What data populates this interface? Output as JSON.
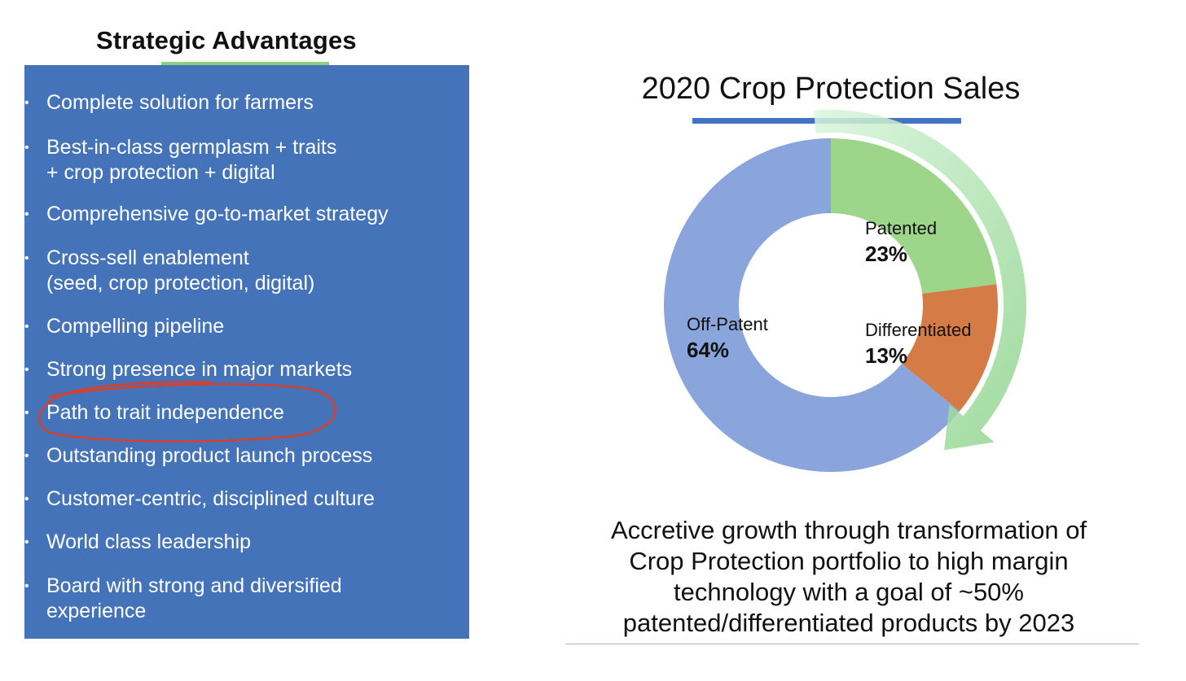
{
  "left_panel": {
    "title": "Strategic Advantages",
    "bullet_glyph": "•",
    "items": [
      {
        "text": "Complete solution for farmers"
      },
      {
        "text": "Best-in-class germplasm + traits\n+ crop protection + digital"
      },
      {
        "text": "Comprehensive go-to-market strategy"
      },
      {
        "text": "Cross-sell enablement\n(seed, crop protection, digital)"
      },
      {
        "text": "Compelling pipeline"
      },
      {
        "text": "Strong presence in major markets"
      },
      {
        "text": "Path to trait independence"
      },
      {
        "text": "Outstanding product launch process"
      },
      {
        "text": "Customer-centric, disciplined culture"
      },
      {
        "text": "World class leadership"
      },
      {
        "text": "Board with strong and diversified\nexperience"
      }
    ],
    "highlighted_item_index": 6
  },
  "colors": {
    "panel_bg": "#4473b9",
    "title_underline": "#8fd17a",
    "chart_underline": "#4472c4",
    "annotation": "#d9402b",
    "patented": "#9dd68b",
    "differentiated": "#d57b45",
    "off_patent": "#8aa4dc",
    "arrow_light": "#d8f5dd",
    "arrow_dark": "#8fd38c"
  },
  "chart_data": {
    "type": "pie",
    "title": "2020 Crop Protection Sales",
    "style": "donut",
    "slices": [
      {
        "label": "Patented",
        "value": 23,
        "display": "23%"
      },
      {
        "label": "Differentiated",
        "value": 13,
        "display": "13%"
      },
      {
        "label": "Off-Patent",
        "value": 64,
        "display": "64%"
      }
    ]
  },
  "caption": {
    "lines": [
      "Accretive growth through transformation of",
      "Crop Protection portfolio to high margin",
      "technology with a goal of ~50%",
      "patented/differentiated products by 2023"
    ]
  }
}
